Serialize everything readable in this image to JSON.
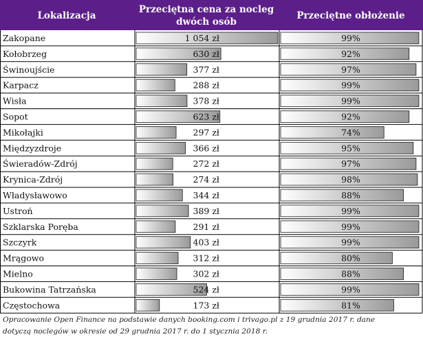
{
  "colors": {
    "header": "#5c1f8a",
    "grid": "#000000",
    "bar_border": "#1a1a1a"
  },
  "headers": {
    "city": "Lokalizacja",
    "price_line1": "Przeciętna cena za nocleg",
    "price_line2": "dwóch osób",
    "occupancy": "Przeciętne obłożenie"
  },
  "chart_data": {
    "type": "table",
    "columns": [
      "Lokalizacja",
      "Przeciętna cena za nocleg dwóch osób",
      "Przeciętne obłożenie"
    ],
    "rows": [
      {
        "city": "Zakopane",
        "price": 1054,
        "price_label": "1 054 zł",
        "occupancy": 99,
        "occupancy_label": "99%"
      },
      {
        "city": "Kołobrzeg",
        "price": 630,
        "price_label": "630 zł",
        "occupancy": 92,
        "occupancy_label": "92%"
      },
      {
        "city": "Świnoujście",
        "price": 377,
        "price_label": "377 zł",
        "occupancy": 97,
        "occupancy_label": "97%"
      },
      {
        "city": "Karpacz",
        "price": 288,
        "price_label": "288 zł",
        "occupancy": 99,
        "occupancy_label": "99%"
      },
      {
        "city": "Wisła",
        "price": 378,
        "price_label": "378 zł",
        "occupancy": 99,
        "occupancy_label": "99%"
      },
      {
        "city": "Sopot",
        "price": 623,
        "price_label": "623 zł",
        "occupancy": 92,
        "occupancy_label": "92%"
      },
      {
        "city": "Mikołajki",
        "price": 297,
        "price_label": "297 zł",
        "occupancy": 74,
        "occupancy_label": "74%"
      },
      {
        "city": "Międzyzdroje",
        "price": 366,
        "price_label": "366 zł",
        "occupancy": 95,
        "occupancy_label": "95%"
      },
      {
        "city": "Świeradów-Zdrój",
        "price": 272,
        "price_label": "272 zł",
        "occupancy": 97,
        "occupancy_label": "97%"
      },
      {
        "city": "Krynica-Zdrój",
        "price": 274,
        "price_label": "274 zł",
        "occupancy": 98,
        "occupancy_label": "98%"
      },
      {
        "city": "Władysławowo",
        "price": 344,
        "price_label": "344 zł",
        "occupancy": 88,
        "occupancy_label": "88%"
      },
      {
        "city": "Ustroń",
        "price": 389,
        "price_label": "389 zł",
        "occupancy": 99,
        "occupancy_label": "99%"
      },
      {
        "city": "Szklarska Poręba",
        "price": 291,
        "price_label": "291 zł",
        "occupancy": 99,
        "occupancy_label": "99%"
      },
      {
        "city": "Szczyrk",
        "price": 403,
        "price_label": "403 zł",
        "occupancy": 99,
        "occupancy_label": "99%"
      },
      {
        "city": "Mrągowo",
        "price": 312,
        "price_label": "312 zł",
        "occupancy": 80,
        "occupancy_label": "80%"
      },
      {
        "city": "Mielno",
        "price": 302,
        "price_label": "302 zł",
        "occupancy": 88,
        "occupancy_label": "88%"
      },
      {
        "city": "Bukowina Tatrzańska",
        "price": 524,
        "price_label": "524 zł",
        "occupancy": 99,
        "occupancy_label": "99%"
      },
      {
        "city": "Częstochowa",
        "price": 173,
        "price_label": "173 zł",
        "occupancy": 81,
        "occupancy_label": "81%"
      }
    ]
  },
  "footnote": {
    "line1": "Opracowanie Open Finance na podstawie danych booking.com i trivago.pl z 19 grudnia 2017 r. dane",
    "line2": "dotyczą noclegów w okresie od 29 grudnia 2017 r. do 1 stycznia 2018 r."
  }
}
